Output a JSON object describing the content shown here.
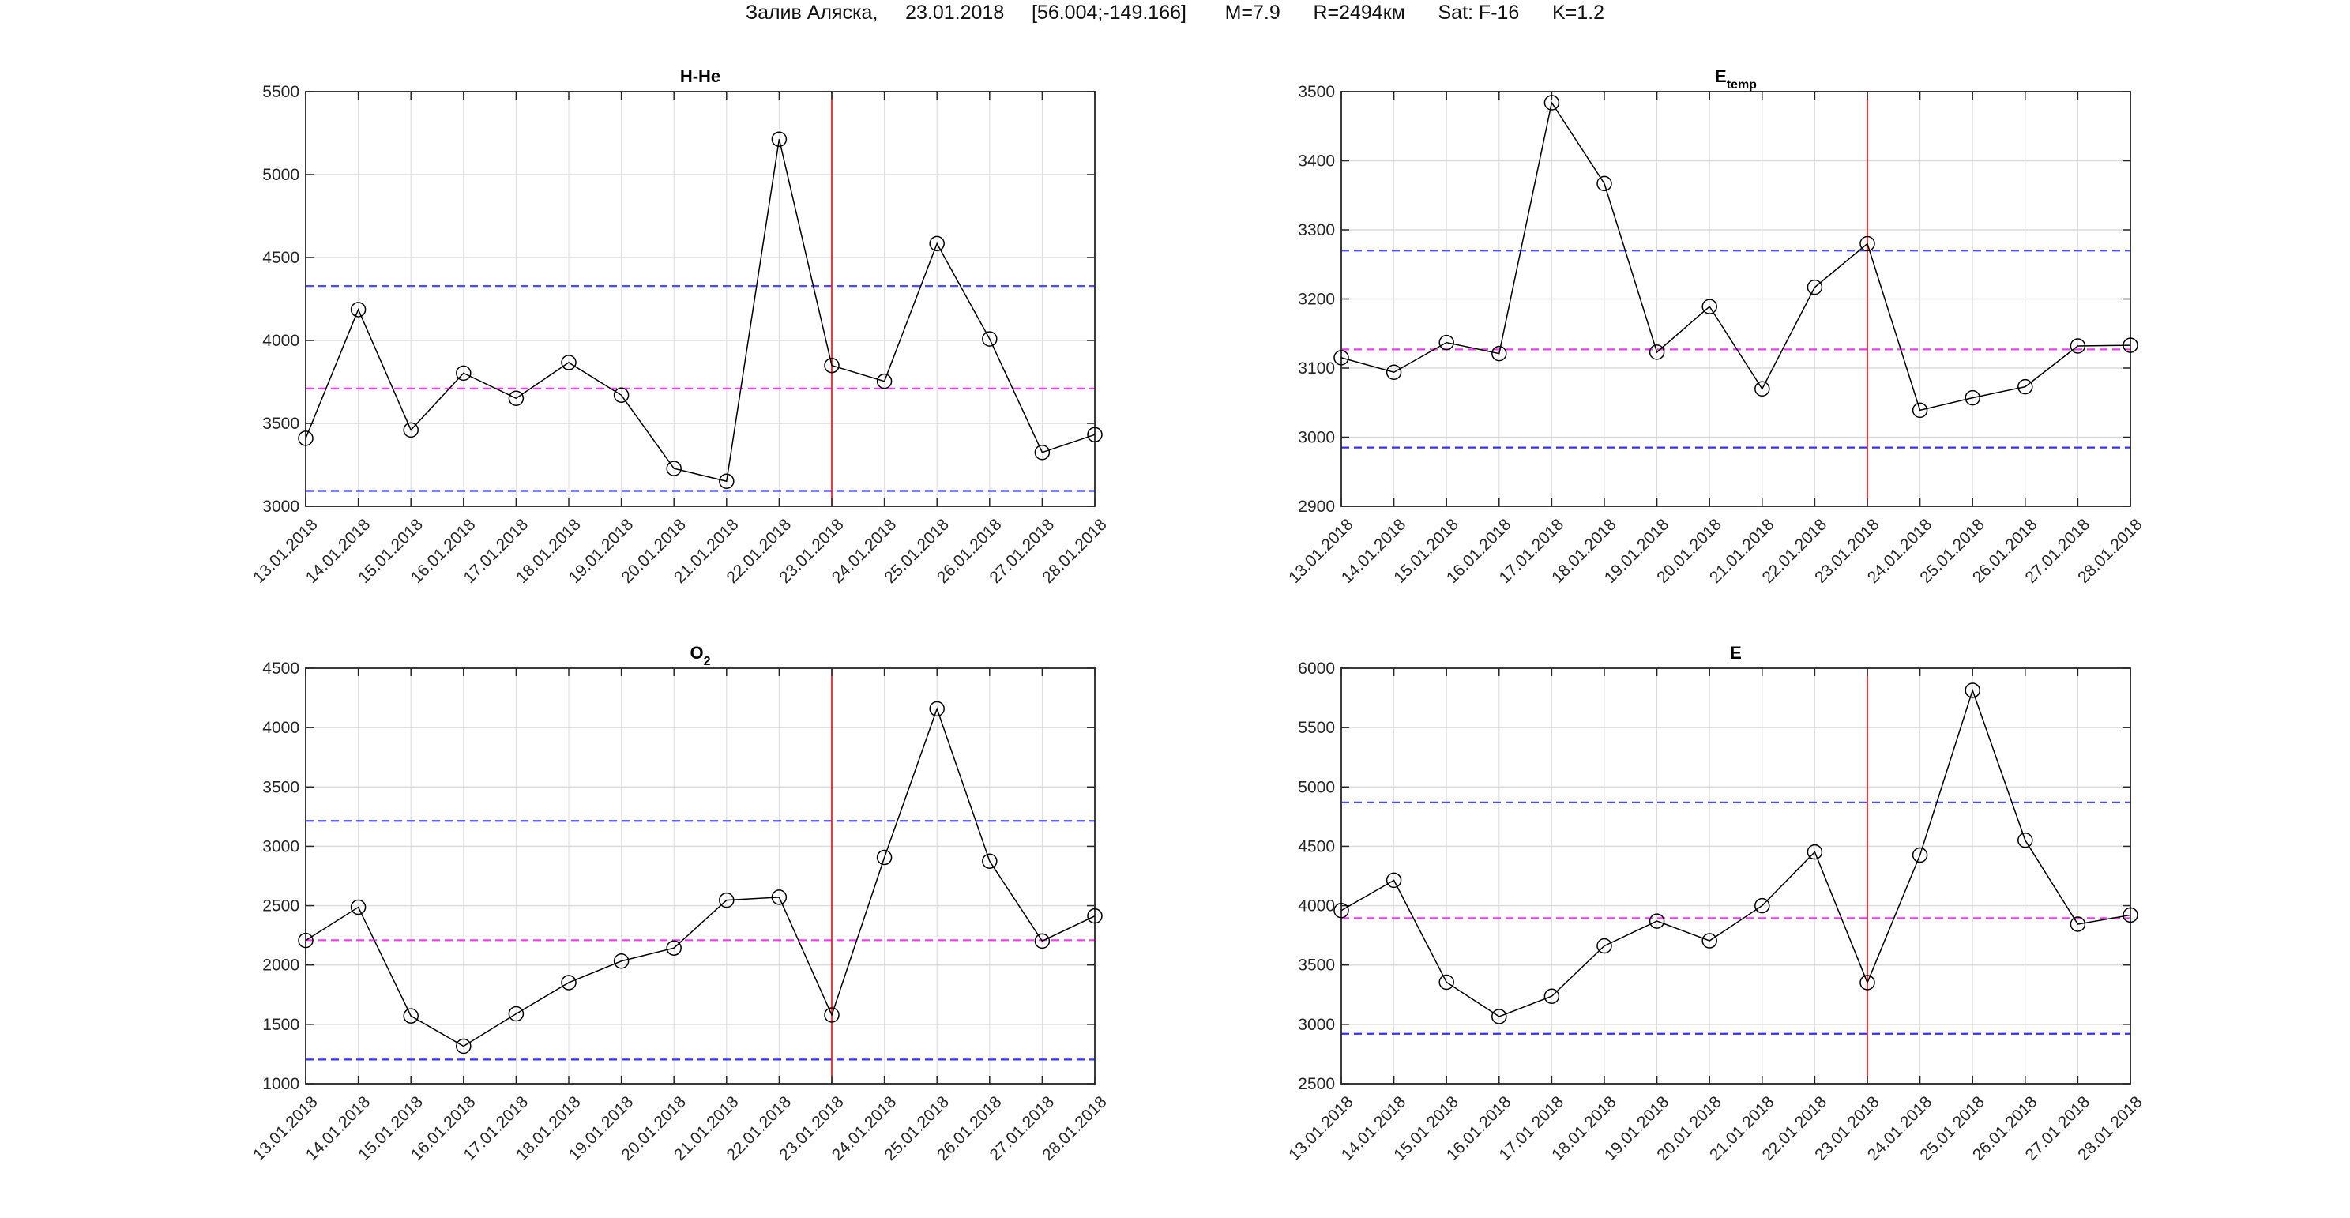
{
  "suptitle": "Залив Аляска,     23.01.2018     [56.004;-149.166]       M=7.9      R=2494км      Sat: F-16      K=1.2",
  "colors": {
    "series": "#000000",
    "upper_bound": "#4d4dff",
    "mean": "#ff33ff",
    "lower_bound": "#3333ff",
    "event_line": "#ff0000",
    "grid": "#dcdcdc"
  },
  "chart_data": [
    {
      "type": "line",
      "title": "H-He",
      "title_sub": "",
      "categories": [
        "13.01.2018",
        "14.01.2018",
        "15.01.2018",
        "16.01.2018",
        "17.01.2018",
        "18.01.2018",
        "19.01.2018",
        "20.01.2018",
        "21.01.2018",
        "22.01.2018",
        "23.01.2018",
        "24.01.2018",
        "25.01.2018",
        "26.01.2018",
        "27.01.2018",
        "28.01.2018"
      ],
      "values": [
        3410,
        4186,
        3460,
        3803,
        3651,
        3867,
        3670,
        3228,
        3151,
        5213,
        3849,
        3754,
        4584,
        4009,
        3325,
        3432
      ],
      "ylim": [
        3000,
        5500
      ],
      "yticks": [
        3000,
        3500,
        4000,
        4500,
        5000,
        5500
      ],
      "upper_bound": 4328,
      "mean": 3710,
      "lower_bound": 3093,
      "event_date": "23.01.2018",
      "grid": true,
      "marker": "circle"
    },
    {
      "type": "line",
      "title": "E",
      "title_sub": "temp",
      "categories": [
        "13.01.2018",
        "14.01.2018",
        "15.01.2018",
        "16.01.2018",
        "17.01.2018",
        "18.01.2018",
        "19.01.2018",
        "20.01.2018",
        "21.01.2018",
        "22.01.2018",
        "23.01.2018",
        "24.01.2018",
        "25.01.2018",
        "26.01.2018",
        "27.01.2018",
        "28.01.2018"
      ],
      "values": [
        3115,
        3094,
        3137,
        3121,
        3484,
        3367,
        3123,
        3189,
        3070,
        3217,
        3280,
        3039,
        3057,
        3073,
        3132,
        3133
      ],
      "ylim": [
        2900,
        3500
      ],
      "yticks": [
        2900,
        3000,
        3100,
        3200,
        3300,
        3400,
        3500
      ],
      "upper_bound": 3270,
      "mean": 3127,
      "lower_bound": 2985,
      "event_date": "23.01.2018",
      "grid": true,
      "marker": "circle"
    },
    {
      "type": "line",
      "title": "O",
      "title_sub": "2",
      "categories": [
        "13.01.2018",
        "14.01.2018",
        "15.01.2018",
        "16.01.2018",
        "17.01.2018",
        "18.01.2018",
        "19.01.2018",
        "20.01.2018",
        "21.01.2018",
        "22.01.2018",
        "23.01.2018",
        "24.01.2018",
        "25.01.2018",
        "26.01.2018",
        "27.01.2018",
        "28.01.2018"
      ],
      "values": [
        2207,
        2487,
        1571,
        1316,
        1589,
        1852,
        2033,
        2143,
        2546,
        2571,
        1579,
        2906,
        4158,
        2875,
        2202,
        2413
      ],
      "ylim": [
        1000,
        4500
      ],
      "yticks": [
        1000,
        1500,
        2000,
        2500,
        3000,
        3500,
        4000,
        4500
      ],
      "upper_bound": 3214,
      "mean": 2209,
      "lower_bound": 1204,
      "event_date": "23.01.2018",
      "grid": true,
      "marker": "circle"
    },
    {
      "type": "line",
      "title": "E",
      "title_sub": "",
      "categories": [
        "13.01.2018",
        "14.01.2018",
        "15.01.2018",
        "16.01.2018",
        "17.01.2018",
        "18.01.2018",
        "19.01.2018",
        "20.01.2018",
        "21.01.2018",
        "22.01.2018",
        "23.01.2018",
        "24.01.2018",
        "25.01.2018",
        "26.01.2018",
        "27.01.2018",
        "28.01.2018"
      ],
      "values": [
        3959,
        4214,
        3355,
        3066,
        3237,
        3661,
        3870,
        3704,
        4000,
        4452,
        3352,
        4426,
        5814,
        4551,
        3844,
        3921
      ],
      "ylim": [
        2500,
        6000
      ],
      "yticks": [
        2500,
        3000,
        3500,
        4000,
        4500,
        5000,
        5500,
        6000
      ],
      "upper_bound": 4870,
      "mean": 3895,
      "lower_bound": 2921,
      "event_date": "23.01.2018",
      "grid": true,
      "marker": "circle"
    }
  ]
}
